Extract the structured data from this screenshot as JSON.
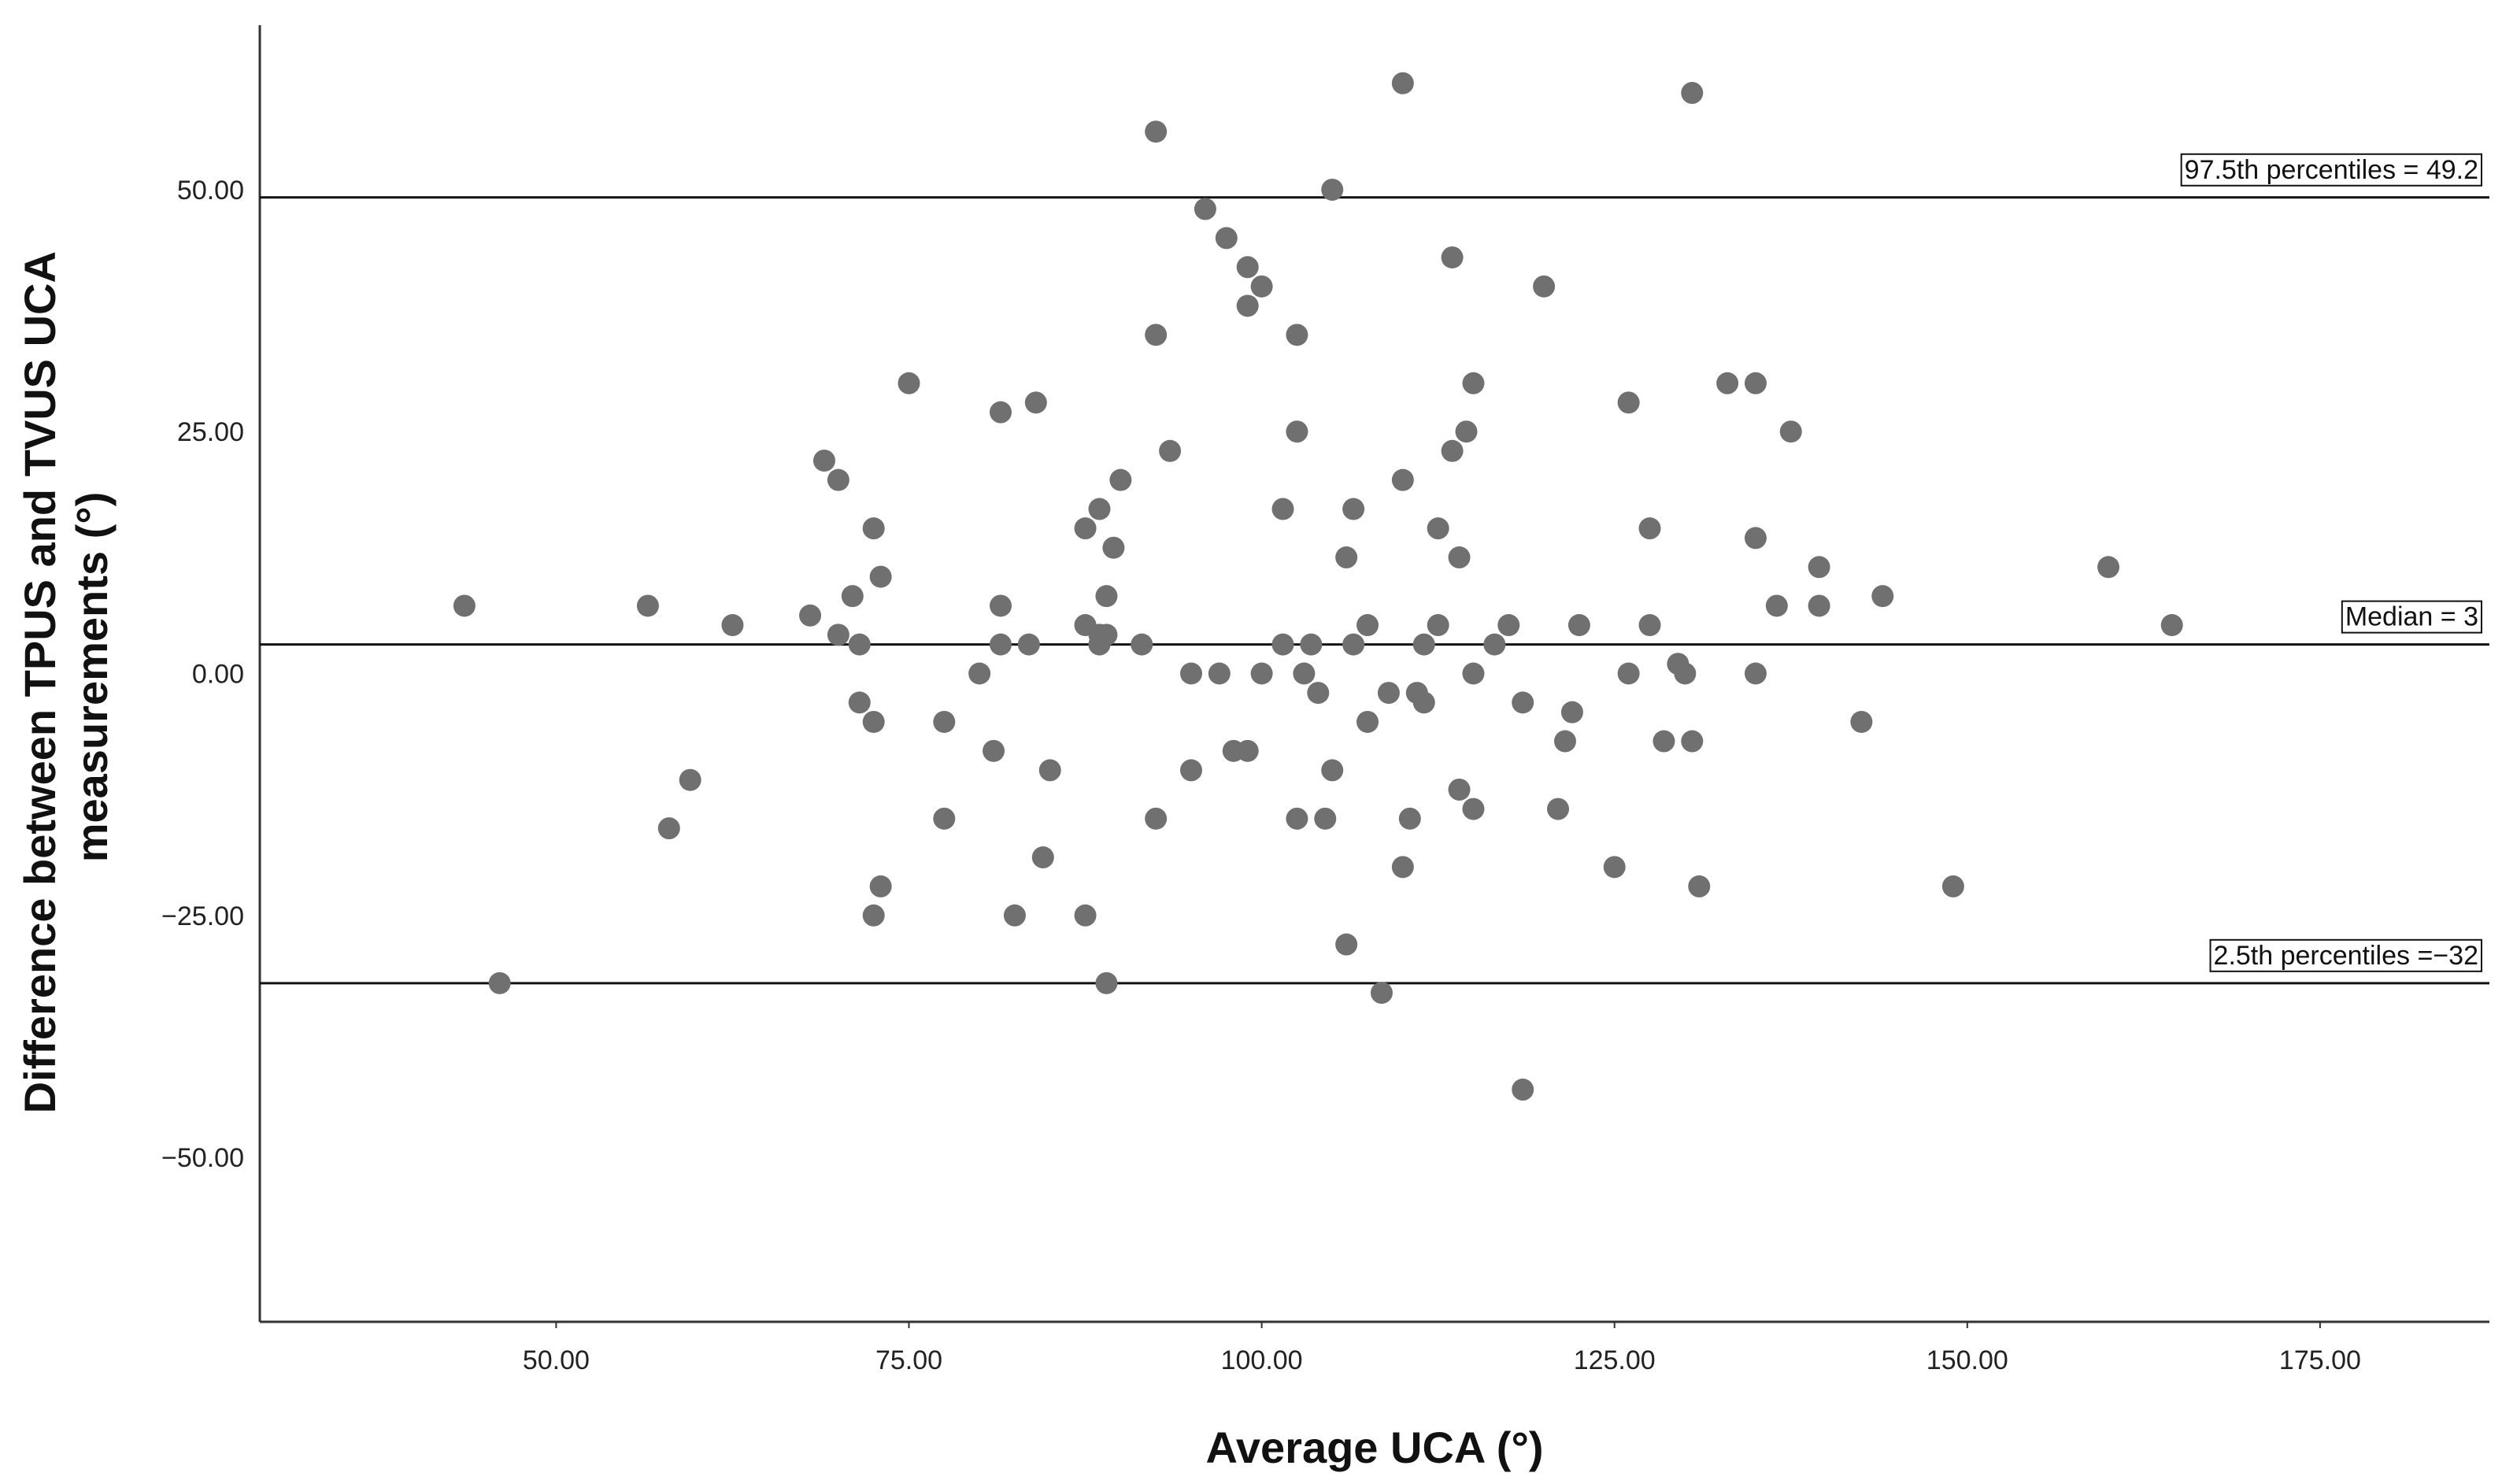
{
  "chart_data": {
    "type": "scatter",
    "xlabel": "Average UCA (°)",
    "ylabel": [
      "Difference between TPUS and TVUS UCA",
      "measurements (°)"
    ],
    "xlim": [
      29,
      187
    ],
    "ylim": [
      -67,
      67
    ],
    "x_ticks": [
      {
        "value": 50,
        "label": "50.00"
      },
      {
        "value": 75,
        "label": "75.00"
      },
      {
        "value": 100,
        "label": "100.00"
      },
      {
        "value": 125,
        "label": "125.00"
      },
      {
        "value": 150,
        "label": "150.00"
      },
      {
        "value": 175,
        "label": "175.00"
      }
    ],
    "y_ticks": [
      {
        "value": 50,
        "label": "50.00"
      },
      {
        "value": 25,
        "label": "25.00"
      },
      {
        "value": 0,
        "label": "0.00"
      },
      {
        "value": -25,
        "label": "−25.00"
      },
      {
        "value": -50,
        "label": "−50.00"
      }
    ],
    "reference_lines": [
      {
        "value": 49.2,
        "label": "97.5th percentiles = 49.2"
      },
      {
        "value": 3,
        "label": "Median = 3"
      },
      {
        "value": -32,
        "label": "2.5th percentiles =−32"
      }
    ],
    "marker_color": "#707070",
    "grid": false,
    "points": [
      [
        43.5,
        7
      ],
      [
        46,
        -32
      ],
      [
        56.5,
        7
      ],
      [
        58,
        -16
      ],
      [
        59.5,
        -11
      ],
      [
        62.5,
        5
      ],
      [
        68,
        6
      ],
      [
        69,
        22
      ],
      [
        70,
        20
      ],
      [
        70,
        4
      ],
      [
        71,
        8
      ],
      [
        71.5,
        3
      ],
      [
        71.5,
        -3
      ],
      [
        72.5,
        15
      ],
      [
        72.5,
        -5
      ],
      [
        72.5,
        -25
      ],
      [
        73,
        10
      ],
      [
        73,
        -22
      ],
      [
        75,
        30
      ],
      [
        77.5,
        -5
      ],
      [
        77.5,
        -15
      ],
      [
        80,
        0
      ],
      [
        81,
        -8
      ],
      [
        81.5,
        27
      ],
      [
        81.5,
        7
      ],
      [
        81.5,
        3
      ],
      [
        82.5,
        -25
      ],
      [
        83.5,
        3
      ],
      [
        84,
        28
      ],
      [
        84.5,
        -19
      ],
      [
        85,
        -10
      ],
      [
        87.5,
        15
      ],
      [
        87.5,
        5
      ],
      [
        87.5,
        -25
      ],
      [
        88.5,
        17
      ],
      [
        88.5,
        4
      ],
      [
        88.5,
        3
      ],
      [
        89,
        8
      ],
      [
        89,
        4
      ],
      [
        89,
        -32
      ],
      [
        89.5,
        13
      ],
      [
        90,
        20
      ],
      [
        91.5,
        3
      ],
      [
        92.5,
        56
      ],
      [
        92.5,
        35
      ],
      [
        92.5,
        -15
      ],
      [
        93.5,
        23
      ],
      [
        95,
        0
      ],
      [
        95,
        -10
      ],
      [
        96,
        48
      ],
      [
        97,
        0
      ],
      [
        97.5,
        45
      ],
      [
        98,
        -8
      ],
      [
        99,
        42
      ],
      [
        99,
        38
      ],
      [
        99,
        -8
      ],
      [
        100,
        40
      ],
      [
        100,
        0
      ],
      [
        101.5,
        17
      ],
      [
        101.5,
        3
      ],
      [
        102.5,
        35
      ],
      [
        102.5,
        25
      ],
      [
        102.5,
        -15
      ],
      [
        103,
        0
      ],
      [
        103.5,
        3
      ],
      [
        104,
        -2
      ],
      [
        104.5,
        -15
      ],
      [
        105,
        50
      ],
      [
        105,
        -10
      ],
      [
        106,
        12
      ],
      [
        106,
        -28
      ],
      [
        106.5,
        17
      ],
      [
        106.5,
        3
      ],
      [
        107.5,
        5
      ],
      [
        107.5,
        -5
      ],
      [
        108.5,
        -33
      ],
      [
        109,
        -2
      ],
      [
        110,
        61
      ],
      [
        110,
        20
      ],
      [
        110,
        -20
      ],
      [
        110.5,
        -15
      ],
      [
        111,
        -2
      ],
      [
        111.5,
        3
      ],
      [
        111.5,
        -3
      ],
      [
        112.5,
        15
      ],
      [
        112.5,
        5
      ],
      [
        113.5,
        43
      ],
      [
        113.5,
        23
      ],
      [
        114,
        12
      ],
      [
        114,
        -12
      ],
      [
        114.5,
        25
      ],
      [
        115,
        30
      ],
      [
        115,
        0
      ],
      [
        115,
        -14
      ],
      [
        116.5,
        3
      ],
      [
        117.5,
        5
      ],
      [
        118.5,
        -3
      ],
      [
        118.5,
        -43
      ],
      [
        120,
        40
      ],
      [
        121,
        -14
      ],
      [
        121.5,
        -7
      ],
      [
        122,
        -4
      ],
      [
        122.5,
        5
      ],
      [
        125,
        -20
      ],
      [
        126,
        28
      ],
      [
        126,
        0
      ],
      [
        127.5,
        15
      ],
      [
        127.5,
        5
      ],
      [
        128.5,
        -7
      ],
      [
        129.5,
        1
      ],
      [
        130,
        0
      ],
      [
        130.5,
        60
      ],
      [
        130.5,
        -7
      ],
      [
        131,
        -22
      ],
      [
        133,
        30
      ],
      [
        135,
        30
      ],
      [
        135,
        14
      ],
      [
        135,
        0
      ],
      [
        136.5,
        7
      ],
      [
        137.5,
        25
      ],
      [
        139.5,
        11
      ],
      [
        139.5,
        7
      ],
      [
        142.5,
        -5
      ],
      [
        144,
        8
      ],
      [
        149,
        -22
      ],
      [
        160,
        11
      ],
      [
        164.5,
        5
      ]
    ]
  }
}
